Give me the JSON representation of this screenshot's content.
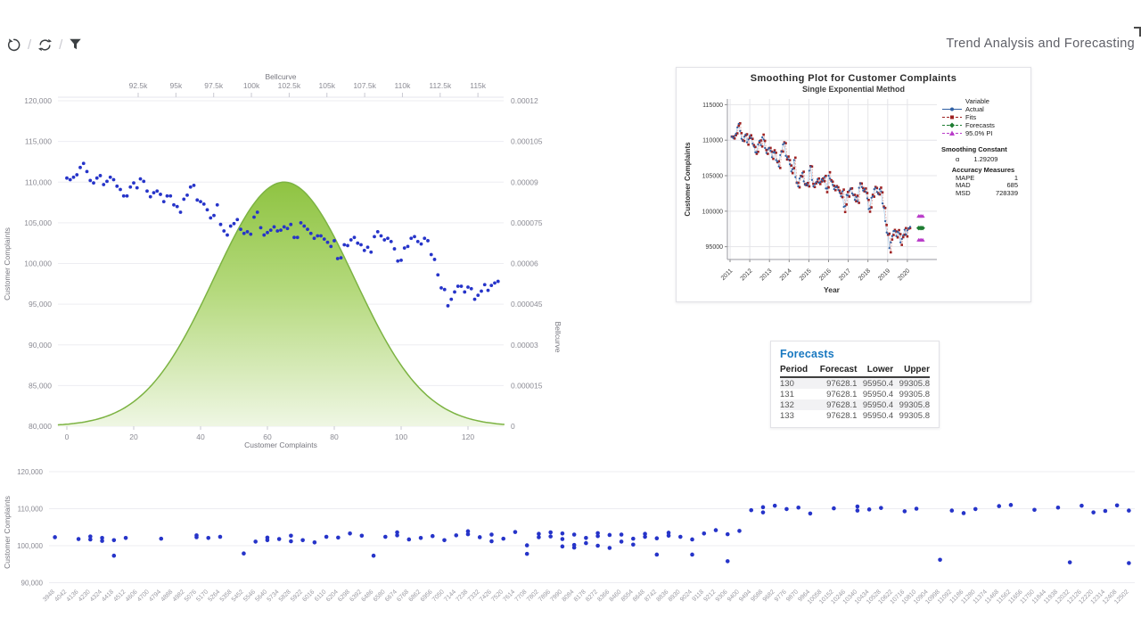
{
  "header": {
    "title": "Trend Analysis and Forecasting"
  },
  "toolbar": {
    "separator": "/",
    "icons": [
      {
        "name": "undo-history-icon"
      },
      {
        "name": "refresh-sync-icon"
      },
      {
        "name": "filter-funnel-icon"
      }
    ]
  },
  "chart_data": [
    {
      "id": "bellcurve-overlay-chart",
      "type": "scatter+area",
      "top_axis": {
        "label": "Bellcurve",
        "ticks": [
          "92.5k",
          "95k",
          "97.5k",
          "100k",
          "102.5k",
          "105k",
          "107.5k",
          "110k",
          "112.5k",
          "115k"
        ]
      },
      "left_axis": {
        "label": "Customer Complaints",
        "min": 80000,
        "max": 120000,
        "ticks": [
          "120,000",
          "115,000",
          "110,000",
          "105,000",
          "100,000",
          "95,000",
          "90,000",
          "85,000",
          "80,000"
        ]
      },
      "right_axis": {
        "label": "Bellcurve",
        "min": 0,
        "max": 0.00012,
        "ticks": [
          "0.00012",
          "0.000105",
          "0.00009",
          "0.000075",
          "0.00006",
          "0.000045",
          "0.00003",
          "0.000015",
          "0"
        ]
      },
      "bottom_axis": {
        "label": "Customer Complaints",
        "ticks": [
          "0",
          "20",
          "40",
          "60",
          "80",
          "100",
          "120"
        ],
        "tick_values": [
          0,
          20,
          40,
          60,
          80,
          100,
          120
        ],
        "range": [
          0,
          130
        ]
      },
      "bell": {
        "mean": 65,
        "sigma": 21,
        "peak": 9e-05,
        "fill_top": "#8ac13a",
        "fill_mid": "#b2d878",
        "fill_bottom": "#eef6e2",
        "stroke": "#7cb342"
      },
      "scatter": {
        "color": "#2634c9",
        "values": [
          110500,
          110300,
          110600,
          110900,
          111800,
          112300,
          111300,
          110200,
          109900,
          110500,
          110800,
          109700,
          110100,
          110600,
          110300,
          109500,
          109100,
          108300,
          108300,
          109400,
          109900,
          109300,
          110400,
          110100,
          108900,
          108200,
          108700,
          108900,
          108500,
          107600,
          108300,
          108300,
          107200,
          107000,
          106300,
          107900,
          108400,
          109400,
          109600,
          107800,
          107600,
          107300,
          106600,
          105600,
          105900,
          107200,
          104800,
          104000,
          103500,
          104600,
          104900,
          105400,
          104200,
          103700,
          103900,
          103600,
          105700,
          106300,
          104400,
          103500,
          103800,
          104100,
          104500,
          104000,
          104100,
          104500,
          104300,
          104800,
          103200,
          103200,
          105000,
          104600,
          104200,
          103700,
          103100,
          103400,
          103400,
          103000,
          102600,
          102100,
          102800,
          100600,
          100700,
          102300,
          102200,
          102900,
          103200,
          102500,
          102300,
          101600,
          102000,
          101400,
          103300,
          103900,
          103400,
          102900,
          103100,
          102700,
          101800,
          100300,
          100400,
          101900,
          102100,
          103100,
          103300,
          102700,
          102400,
          103100,
          102800,
          101100,
          100500,
          98600,
          97000,
          96800,
          94800,
          95600,
          96500,
          97200,
          97200,
          96500,
          97100,
          96900,
          95600,
          96100,
          96600,
          97400,
          96700,
          97300,
          97600,
          97800
        ]
      }
    },
    {
      "id": "smoothing-plot",
      "type": "line",
      "title": "Smoothing Plot for Customer Complaints",
      "subtitle": "Single Exponential Method",
      "xlabel": "Year",
      "ylabel": "Customer Complaints",
      "x_ticks": [
        "2011",
        "2012",
        "2013",
        "2014",
        "2015",
        "2016",
        "2017",
        "2018",
        "2019",
        "2020"
      ],
      "y_ticks": [
        "115000",
        "110000",
        "105000",
        "100000",
        "95000"
      ],
      "y_tick_values": [
        115000,
        110000,
        105000,
        100000,
        95000
      ],
      "ylim": [
        93200,
        115800
      ],
      "legend": {
        "header": "Variable",
        "items": [
          {
            "label": "Actual",
            "color": "#2e5fa3",
            "marker": "circle",
            "line": "solid"
          },
          {
            "label": "Fits",
            "color": "#9e2121",
            "marker": "square",
            "line": "dash"
          },
          {
            "label": "Forecasts",
            "color": "#1e7d32",
            "marker": "diamond",
            "line": "dash"
          },
          {
            "label": "95.0% PI",
            "color": "#b93cc9",
            "marker": "triangle",
            "line": "dash"
          }
        ]
      },
      "smoothing_constant": {
        "title": "Smoothing Constant",
        "alpha_symbol": "α",
        "alpha_value": "1.29209"
      },
      "accuracy": {
        "title": "Accuracy Measures",
        "rows": [
          [
            "MAPE",
            "1"
          ],
          [
            "MAD",
            "685"
          ],
          [
            "MSD",
            "728339"
          ]
        ]
      },
      "alpha": 1.29209,
      "forecast": {
        "periods": [
          130,
          131,
          132,
          133
        ],
        "value": 97628.1,
        "lower": 95950.4,
        "upper": 99305.8
      }
    },
    {
      "id": "bottom-scatter",
      "type": "scatter",
      "ylabel": "Customer Complaints",
      "y_ticks": [
        "120,000",
        "110,000",
        "100,000",
        "90,000"
      ],
      "y_tick_values": [
        120000,
        110000,
        100000,
        90000
      ],
      "color": "#2634c9",
      "x_categories": [
        3948,
        4042,
        4136,
        4230,
        4324,
        4418,
        4512,
        4606,
        4700,
        4794,
        4888,
        4982,
        5076,
        5170,
        5264,
        5358,
        5452,
        5546,
        5640,
        5734,
        5828,
        5922,
        6016,
        6110,
        6204,
        6298,
        6392,
        6486,
        6580,
        6674,
        6768,
        6862,
        6956,
        7050,
        7144,
        7238,
        7332,
        7426,
        7520,
        7614,
        7708,
        7802,
        7896,
        7990,
        8084,
        8178,
        8272,
        8366,
        8460,
        8554,
        8648,
        8742,
        8836,
        8930,
        9024,
        9118,
        9212,
        9306,
        9400,
        9494,
        9588,
        9682,
        9776,
        9870,
        9964,
        10058,
        10152,
        10246,
        10340,
        10434,
        10528,
        10622,
        10716,
        10810,
        10904,
        10998,
        11092,
        11186,
        11280,
        11374,
        11468,
        11562,
        11656,
        11750,
        11844,
        11938,
        12032,
        12126,
        12220,
        12314,
        12408,
        12502
      ],
      "points": [
        [
          0,
          102300
        ],
        [
          2,
          101800
        ],
        [
          3,
          102500
        ],
        [
          3,
          101700
        ],
        [
          4,
          102100
        ],
        [
          4,
          101300
        ],
        [
          5,
          97300
        ],
        [
          5,
          101500
        ],
        [
          6,
          102100
        ],
        [
          9,
          101900
        ],
        [
          12,
          102800
        ],
        [
          12,
          102300
        ],
        [
          13,
          102100
        ],
        [
          14,
          102400
        ],
        [
          16,
          97900
        ],
        [
          17,
          101100
        ],
        [
          18,
          102200
        ],
        [
          18,
          101500
        ],
        [
          19,
          101800
        ],
        [
          20,
          102700
        ],
        [
          20,
          101200
        ],
        [
          21,
          101500
        ],
        [
          22,
          100900
        ],
        [
          23,
          102400
        ],
        [
          24,
          102200
        ],
        [
          25,
          103300
        ],
        [
          26,
          102700
        ],
        [
          27,
          97300
        ],
        [
          28,
          102400
        ],
        [
          29,
          103600
        ],
        [
          29,
          102800
        ],
        [
          30,
          101700
        ],
        [
          31,
          102100
        ],
        [
          32,
          102600
        ],
        [
          33,
          101500
        ],
        [
          34,
          102800
        ],
        [
          35,
          103900
        ],
        [
          35,
          103100
        ],
        [
          36,
          102300
        ],
        [
          37,
          103000
        ],
        [
          37,
          101200
        ],
        [
          38,
          101900
        ],
        [
          39,
          103700
        ],
        [
          40,
          100100
        ],
        [
          40,
          97800
        ],
        [
          41,
          103200
        ],
        [
          41,
          102300
        ],
        [
          42,
          103600
        ],
        [
          42,
          102500
        ],
        [
          43,
          103300
        ],
        [
          43,
          101800
        ],
        [
          43,
          99800
        ],
        [
          44,
          103000
        ],
        [
          44,
          100200
        ],
        [
          44,
          99500
        ],
        [
          45,
          102100
        ],
        [
          45,
          100700
        ],
        [
          46,
          103400
        ],
        [
          46,
          102600
        ],
        [
          46,
          100000
        ],
        [
          47,
          102900
        ],
        [
          47,
          99400
        ],
        [
          48,
          103000
        ],
        [
          48,
          101100
        ],
        [
          49,
          101900
        ],
        [
          49,
          100300
        ],
        [
          50,
          103200
        ],
        [
          50,
          102400
        ],
        [
          51,
          102000
        ],
        [
          51,
          97600
        ],
        [
          52,
          103500
        ],
        [
          52,
          102700
        ],
        [
          53,
          102400
        ],
        [
          54,
          101700
        ],
        [
          54,
          97600
        ],
        [
          55,
          103300
        ],
        [
          56,
          104200
        ],
        [
          57,
          95800
        ],
        [
          57,
          103100
        ],
        [
          58,
          104000
        ],
        [
          59,
          109600
        ],
        [
          60,
          110400
        ],
        [
          60,
          109000
        ],
        [
          61,
          110800
        ],
        [
          62,
          109900
        ],
        [
          63,
          110300
        ],
        [
          64,
          108700
        ],
        [
          66,
          110100
        ],
        [
          68,
          110600
        ],
        [
          68,
          109500
        ],
        [
          69,
          109800
        ],
        [
          70,
          110200
        ],
        [
          72,
          109300
        ],
        [
          73,
          110000
        ],
        [
          75,
          96200
        ],
        [
          76,
          109500
        ],
        [
          77,
          108800
        ],
        [
          78,
          109900
        ],
        [
          80,
          110700
        ],
        [
          81,
          111000
        ],
        [
          83,
          109700
        ],
        [
          85,
          110300
        ],
        [
          86,
          95500
        ],
        [
          87,
          110800
        ],
        [
          88,
          109000
        ],
        [
          89,
          109400
        ],
        [
          90,
          110900
        ],
        [
          91,
          95300
        ],
        [
          91,
          109500
        ]
      ]
    }
  ],
  "forecast_table": {
    "title": "Forecasts",
    "columns": [
      "Period",
      "Forecast",
      "Lower",
      "Upper"
    ],
    "rows": [
      [
        "130",
        "97628.1",
        "95950.4",
        "99305.8"
      ],
      [
        "131",
        "97628.1",
        "95950.4",
        "99305.8"
      ],
      [
        "132",
        "97628.1",
        "95950.4",
        "99305.8"
      ],
      [
        "133",
        "97628.1",
        "95950.4",
        "99305.8"
      ]
    ]
  }
}
